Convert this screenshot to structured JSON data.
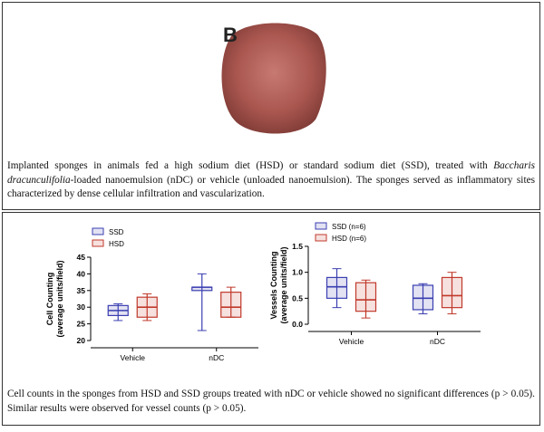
{
  "figure": {
    "panel_label": "B",
    "caption_top": [
      "Implanted sponges in animals fed a high sodium diet (HSD) or standard sodium diet (SSD), treated with ",
      "Baccharis dracunculifolia",
      "-loaded nanoemulsion (nDC) or vehicle (unloaded nanoemulsion). The sponges served as inflammatory sites characterized by dense cellular infiltration and vascularization."
    ],
    "caption_bottom": "Cell counts in the sponges from HSD and SSD groups treated with nDC or vehicle showed no significant differences (p > 0.05). Similar results were observed for vessel counts (p > 0.05)."
  },
  "chart_data": [
    {
      "type": "box",
      "ylabel": [
        "Cell Counting",
        "(average units/field)"
      ],
      "categories": [
        "Vehicle",
        "nDC"
      ],
      "ylim": [
        20,
        45
      ],
      "yticks": [
        20,
        25,
        30,
        35,
        40,
        45
      ],
      "series": [
        {
          "name": "SSD",
          "color": "#3b3fb0",
          "min": [
            26,
            23
          ],
          "q1": [
            27.5,
            35
          ],
          "median": [
            29,
            36
          ],
          "q3": [
            30.5,
            36
          ],
          "max": [
            31,
            40
          ]
        },
        {
          "name": "HSD",
          "color": "#c0392b",
          "min": [
            26,
            27
          ],
          "q1": [
            27,
            27
          ],
          "median": [
            30,
            30
          ],
          "q3": [
            33,
            34.5
          ],
          "max": [
            34,
            36
          ]
        }
      ]
    },
    {
      "type": "box",
      "ylabel": [
        "Vessels Counting",
        "(average units/field)"
      ],
      "categories": [
        "Vehicle",
        "nDC"
      ],
      "ylim": [
        0,
        1.5
      ],
      "yticks": [
        {
          "value": 0,
          "label": "0.0"
        },
        0.5,
        {
          "value": 1,
          "label": "1.0"
        },
        1.5
      ],
      "series": [
        {
          "name": "SSD (n=6)",
          "color": "#3b3fb0",
          "min": [
            0.32,
            0.2
          ],
          "q1": [
            0.5,
            0.28
          ],
          "median": [
            0.72,
            0.5
          ],
          "q3": [
            0.9,
            0.75
          ],
          "max": [
            1.07,
            0.78
          ]
        },
        {
          "name": "HSD (n=6)",
          "color": "#c0392b",
          "min": [
            0.12,
            0.2
          ],
          "q1": [
            0.25,
            0.32
          ],
          "median": [
            0.47,
            0.55
          ],
          "q3": [
            0.8,
            0.9
          ],
          "max": [
            0.85,
            1.0
          ]
        }
      ]
    }
  ]
}
